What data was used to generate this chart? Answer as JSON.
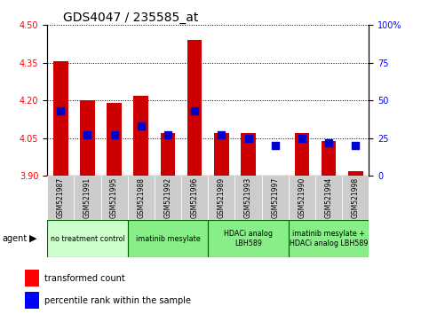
{
  "title": "GDS4047 / 235585_at",
  "samples": [
    "GSM521987",
    "GSM521991",
    "GSM521995",
    "GSM521988",
    "GSM521992",
    "GSM521996",
    "GSM521989",
    "GSM521993",
    "GSM521997",
    "GSM521990",
    "GSM521994",
    "GSM521998"
  ],
  "transformed_count": [
    4.355,
    4.2,
    4.19,
    4.22,
    4.07,
    4.44,
    4.07,
    4.07,
    3.9,
    4.07,
    4.04,
    3.92
  ],
  "percentile_rank": [
    43,
    27,
    27,
    33,
    27,
    43,
    27,
    25,
    20,
    25,
    22,
    20
  ],
  "ylim_left": [
    3.9,
    4.5
  ],
  "ylim_right": [
    0,
    100
  ],
  "yticks_left": [
    3.9,
    4.05,
    4.2,
    4.35,
    4.5
  ],
  "yticks_right": [
    0,
    25,
    50,
    75,
    100
  ],
  "groups": [
    {
      "label": "no treatment control",
      "start": 0,
      "end": 3,
      "color": "#ccffcc"
    },
    {
      "label": "imatinib mesylate",
      "start": 3,
      "end": 6,
      "color": "#88ee88"
    },
    {
      "label": "HDACi analog\nLBH589",
      "start": 6,
      "end": 9,
      "color": "#88ee88"
    },
    {
      "label": "imatinib mesylate +\nHDACi analog LBH589",
      "start": 9,
      "end": 12,
      "color": "#88ee88"
    }
  ],
  "bar_color": "#cc0000",
  "dot_color": "#0000cc",
  "bar_bottom": 3.9,
  "bar_width": 0.55,
  "dot_size": 40,
  "bg_color": "#ffffff",
  "title_fontsize": 10,
  "tick_fontsize": 7,
  "sample_cell_color": "#cccccc",
  "group_border_color": "#006600"
}
